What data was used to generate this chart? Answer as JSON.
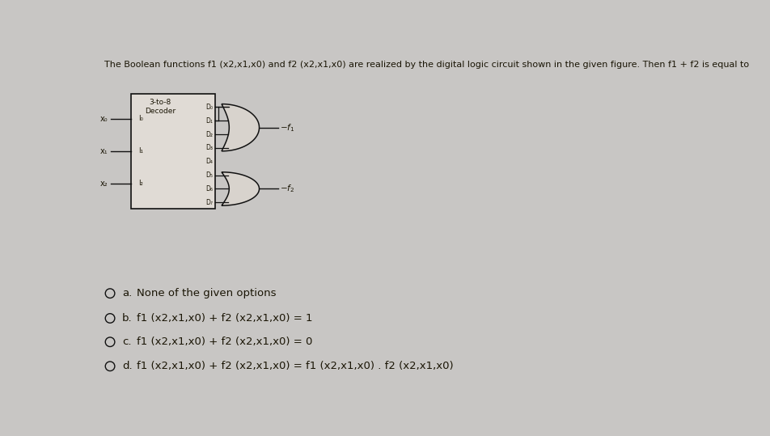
{
  "title": "The Boolean functions f1 (x2,x1,x0) and f2 (x2,x1,x0) are realized by the digital logic circuit shown in the given figure. Then f1 + f2 is equal to",
  "title_fontsize": 8.0,
  "bg_color": "#c8c6c4",
  "options_labels": [
    "a.",
    "b.",
    "c.",
    "d."
  ],
  "options_texts": [
    "None of the given options",
    "f1 (x2,x1,x0) + f2 (x2,x1,x0) = 1",
    "f1 (x2,x1,x0) + f2 (x2,x1,x0) = 0",
    "f1 (x2,x1,x0) + f2 (x2,x1,x0) = f1 (x2,x1,x0) . f2 (x2,x1,x0)"
  ],
  "decoder_outputs": [
    "D₀",
    "D₁",
    "D₂",
    "D₃",
    "D₄",
    "D₅",
    "D₆",
    "D₇"
  ],
  "f1_connections": [
    0,
    1,
    2,
    3
  ],
  "f2_connections": [
    5,
    6,
    7
  ],
  "line_color": "#111111",
  "box_face": "#e0dbd5",
  "gate_face": "#d8d3cd",
  "text_color": "#1a1505"
}
